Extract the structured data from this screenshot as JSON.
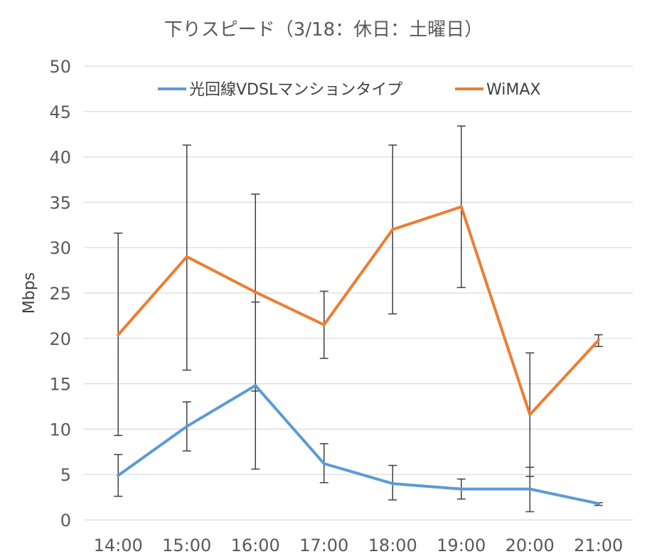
{
  "chart_data": {
    "type": "line",
    "title": "下りスピード（3/18：休日：土曜日）",
    "xlabel": "",
    "ylabel": "Mbps",
    "categories": [
      "14:00",
      "15:00",
      "16:00",
      "17:00",
      "18:00",
      "19:00",
      "20:00",
      "21:00"
    ],
    "ylim": [
      0,
      50
    ],
    "yticks": [
      "0",
      "5",
      "10",
      "15",
      "20",
      "25",
      "30",
      "35",
      "40",
      "45",
      "50"
    ],
    "grid": true,
    "legend_position": "top",
    "series": [
      {
        "name": "光回線VDSLマンションタイプ",
        "color": "#5B9BD5",
        "values": [
          4.9,
          10.3,
          14.8,
          6.2,
          4.0,
          3.4,
          3.4,
          1.8
        ],
        "err_high": [
          7.2,
          13.0,
          24.0,
          8.4,
          6.0,
          4.5,
          5.8,
          1.9
        ],
        "err_low": [
          2.6,
          7.6,
          5.6,
          4.1,
          2.2,
          2.3,
          0.9,
          1.6
        ]
      },
      {
        "name": "WiMAX",
        "color": "#ED7D31",
        "values": [
          20.4,
          29.0,
          25.1,
          21.5,
          32.0,
          34.5,
          11.6,
          19.8
        ],
        "err_high": [
          31.6,
          41.3,
          35.9,
          25.2,
          41.3,
          43.4,
          18.4,
          20.4
        ],
        "err_low": [
          9.3,
          16.5,
          14.2,
          17.8,
          22.7,
          25.6,
          4.8,
          19.1
        ]
      }
    ]
  }
}
